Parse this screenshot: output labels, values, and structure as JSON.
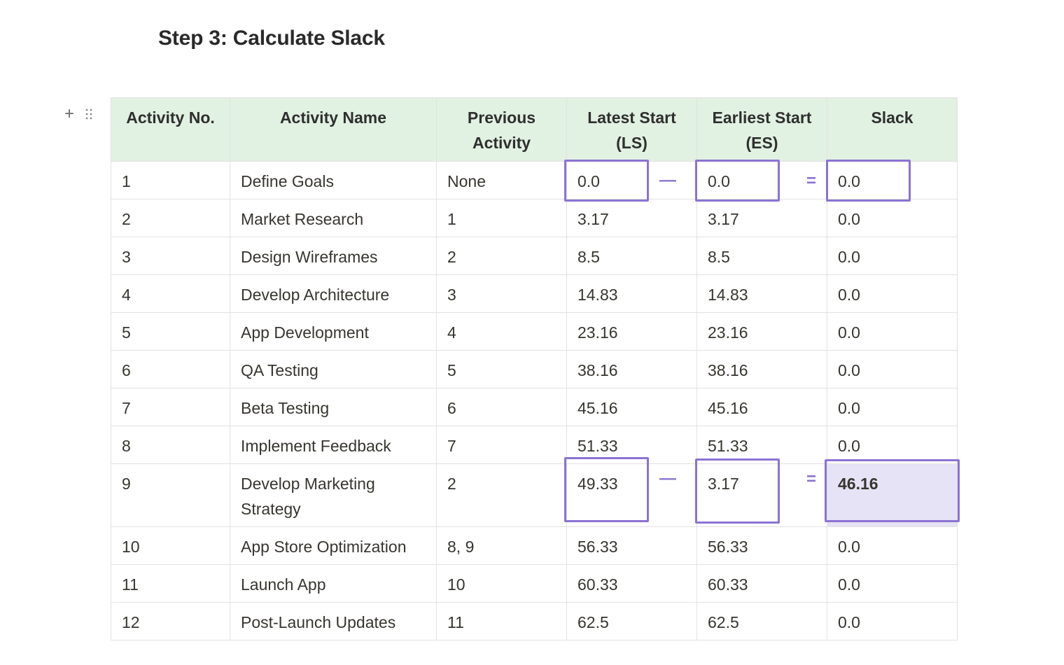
{
  "title": "Step 3: Calculate Slack",
  "block_controls": {
    "add_icon": "plus-icon",
    "drag_icon": "drag-handle-icon"
  },
  "table": {
    "headers": [
      "Activity No.",
      "Activity Name",
      "Previous Activity",
      "Latest Start (LS)",
      "Earliest Start (ES)",
      "Slack"
    ],
    "rows": [
      [
        "1",
        "Define Goals",
        "None",
        "0.0",
        "0.0",
        "0.0"
      ],
      [
        "2",
        "Market Research",
        "1",
        "3.17",
        "3.17",
        "0.0"
      ],
      [
        "3",
        "Design Wireframes",
        "2",
        "8.5",
        "8.5",
        "0.0"
      ],
      [
        "4",
        "Develop Architecture",
        "3",
        "14.83",
        "14.83",
        "0.0"
      ],
      [
        "5",
        "App Development",
        "4",
        "23.16",
        "23.16",
        "0.0"
      ],
      [
        "6",
        "QA Testing",
        "5",
        "38.16",
        "38.16",
        "0.0"
      ],
      [
        "7",
        "Beta Testing",
        "6",
        "45.16",
        "45.16",
        "0.0"
      ],
      [
        "8",
        "Implement Feedback",
        "7",
        "51.33",
        "51.33",
        "0.0"
      ],
      [
        "9",
        "Develop Marketing Strategy",
        "2",
        "49.33",
        "3.17",
        "46.16"
      ],
      [
        "10",
        "App Store Optimization",
        "8, 9",
        "56.33",
        "56.33",
        "0.0"
      ],
      [
        "11",
        "Launch App",
        "10",
        "60.33",
        "60.33",
        "0.0"
      ],
      [
        "12",
        "Post-Launch Updates",
        "11",
        "62.5",
        "62.5",
        "0.0"
      ]
    ]
  },
  "annotations": {
    "minus": "—",
    "equals": "=",
    "accent_color": "#8b73d3",
    "highlight_fill": "#e6e3f6",
    "header_fill": "#e1f1e2"
  }
}
